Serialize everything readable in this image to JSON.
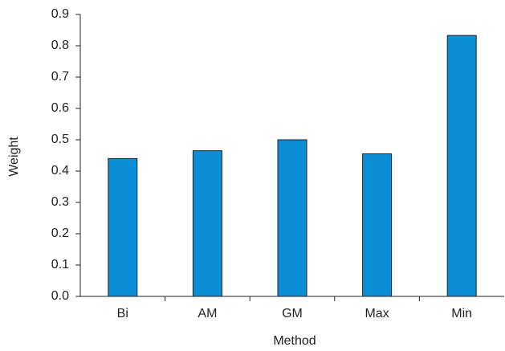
{
  "chart_data": {
    "type": "bar",
    "x_label": "Method",
    "y_label": "Weight",
    "categories": [
      "Bi",
      "AM",
      "GM",
      "Max",
      "Min"
    ],
    "values": [
      0.44,
      0.465,
      0.5,
      0.455,
      0.833
    ],
    "color": "#0a8fd6",
    "ylim": [
      0,
      0.9
    ],
    "yticks": [
      {
        "value": 0,
        "label": "0.0"
      },
      0.1,
      0.2,
      0.3,
      0.4,
      0.5,
      0.6,
      0.7,
      0.8,
      0.9
    ],
    "grid": false
  }
}
